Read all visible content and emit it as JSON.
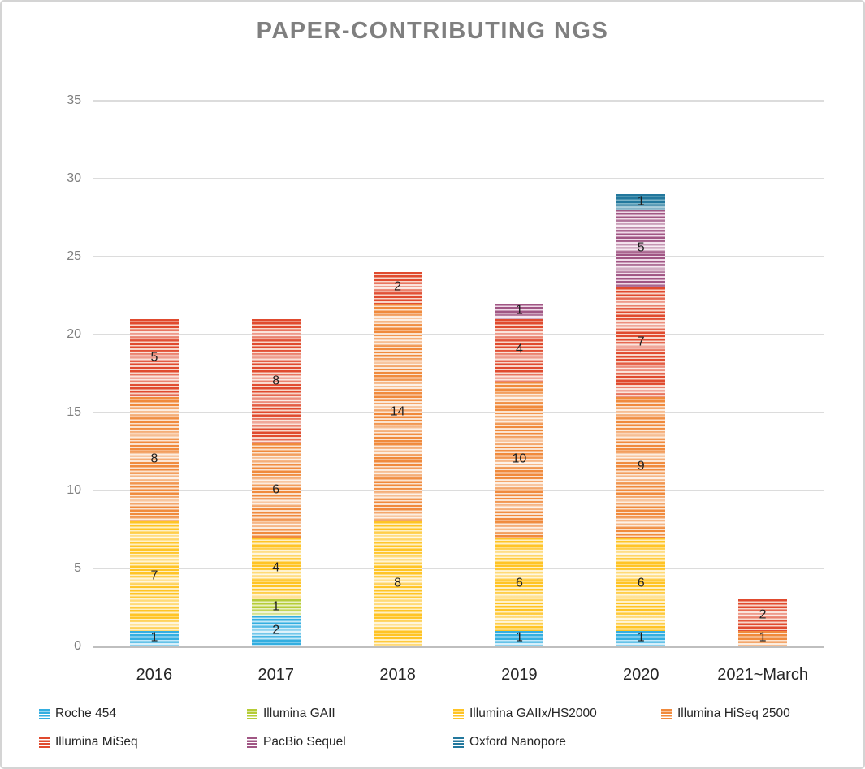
{
  "title": "PAPER-CONTRIBUTING NGS",
  "chart_data": {
    "type": "bar",
    "stacked": true,
    "title": "PAPER-CONTRIBUTING NGS",
    "categories": [
      "2016",
      "2017",
      "2018",
      "2019",
      "2020",
      "2021~March"
    ],
    "series": [
      {
        "name": "Roche 454",
        "color": "#33AEE0",
        "light": "#C2E8F8",
        "values": [
          1,
          2,
          0,
          1,
          1,
          0
        ]
      },
      {
        "name": "Illumina GAII",
        "color": "#B5CC36",
        "light": "#E9F0BE",
        "values": [
          0,
          1,
          0,
          0,
          0,
          0
        ]
      },
      {
        "name": "Illumina GAIIx/HS2000",
        "color": "#FFC425",
        "light": "#FFEFC2",
        "values": [
          7,
          4,
          8,
          6,
          6,
          0
        ]
      },
      {
        "name": "Illumina HiSeq 2500",
        "color": "#F08A3C",
        "light": "#FBE3CF",
        "values": [
          8,
          6,
          14,
          10,
          9,
          1
        ]
      },
      {
        "name": "Illumina MiSeq",
        "color": "#E04A2E",
        "light": "#F8D6C9",
        "values": [
          5,
          8,
          2,
          4,
          7,
          2
        ]
      },
      {
        "name": "PacBio Sequel",
        "color": "#A05684",
        "light": "#EFDAE8",
        "values": [
          0,
          0,
          0,
          1,
          5,
          0
        ]
      },
      {
        "name": "Oxford Nanopore",
        "color": "#23789D",
        "light": "#7BB3C7",
        "values": [
          0,
          0,
          0,
          0,
          1,
          0
        ]
      }
    ],
    "y_ticks": [
      0,
      5,
      10,
      15,
      20,
      25,
      30,
      35
    ],
    "ylim": [
      0,
      35
    ],
    "grid": true,
    "legend_position": "bottom",
    "colors": {
      "title_text": "#7F7F7F",
      "gridline": "#DCDCDC",
      "axis_line": "#BFBFBF",
      "tick_text": "#7F7F7F",
      "label_text": "#262626"
    }
  }
}
